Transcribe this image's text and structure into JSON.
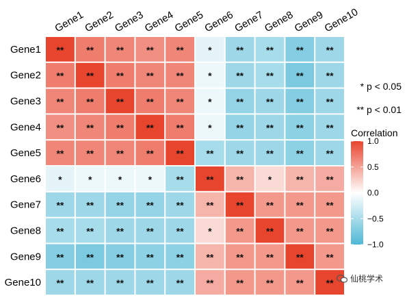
{
  "chart_data": {
    "type": "heatmap",
    "title": "",
    "genes": [
      "Gene1",
      "Gene2",
      "Gene3",
      "Gene4",
      "Gene5",
      "Gene6",
      "Gene7",
      "Gene8",
      "Gene9",
      "Gene10"
    ],
    "matrix": [
      [
        1.0,
        0.7,
        0.65,
        0.6,
        0.65,
        -0.15,
        -0.55,
        -0.5,
        -0.7,
        -0.55
      ],
      [
        0.7,
        1.0,
        0.7,
        0.65,
        0.65,
        -0.1,
        -0.55,
        -0.5,
        -0.75,
        -0.55
      ],
      [
        0.65,
        0.7,
        1.0,
        0.7,
        0.65,
        -0.1,
        -0.6,
        -0.55,
        -0.7,
        -0.55
      ],
      [
        0.6,
        0.65,
        0.7,
        1.0,
        0.7,
        -0.1,
        -0.6,
        -0.55,
        -0.65,
        -0.55
      ],
      [
        0.65,
        0.65,
        0.65,
        0.7,
        1.0,
        -0.5,
        -0.55,
        -0.55,
        -0.65,
        -0.55
      ],
      [
        -0.15,
        -0.1,
        -0.1,
        -0.1,
        -0.5,
        1.0,
        0.4,
        0.2,
        0.4,
        0.45
      ],
      [
        -0.55,
        -0.55,
        -0.6,
        -0.6,
        -0.55,
        0.4,
        1.0,
        0.55,
        0.55,
        0.55
      ],
      [
        -0.5,
        -0.5,
        -0.55,
        -0.55,
        -0.55,
        0.2,
        0.55,
        1.0,
        0.55,
        0.55
      ],
      [
        -0.7,
        -0.75,
        -0.7,
        -0.65,
        -0.65,
        0.4,
        0.55,
        0.55,
        1.0,
        0.55
      ],
      [
        -0.55,
        -0.55,
        -0.55,
        -0.55,
        -0.55,
        0.45,
        0.55,
        0.55,
        0.55,
        1.0
      ]
    ],
    "significance": [
      [
        "**",
        "**",
        "**",
        "**",
        "**",
        "*",
        "**",
        "**",
        "**",
        "**"
      ],
      [
        "**",
        "**",
        "**",
        "**",
        "**",
        "*",
        "**",
        "**",
        "**",
        "**"
      ],
      [
        "**",
        "**",
        "**",
        "**",
        "**",
        "*",
        "**",
        "**",
        "**",
        "**"
      ],
      [
        "**",
        "**",
        "**",
        "**",
        "**",
        "*",
        "**",
        "**",
        "**",
        "**"
      ],
      [
        "**",
        "**",
        "**",
        "**",
        "**",
        "**",
        "**",
        "**",
        "**",
        "**"
      ],
      [
        "*",
        "*",
        "*",
        "*",
        "**",
        "**",
        "**",
        "*",
        "**",
        "**"
      ],
      [
        "**",
        "**",
        "**",
        "**",
        "**",
        "**",
        "**",
        "**",
        "**",
        "**"
      ],
      [
        "**",
        "**",
        "**",
        "**",
        "**",
        "*",
        "**",
        "**",
        "**",
        "**"
      ],
      [
        "**",
        "**",
        "**",
        "**",
        "**",
        "**",
        "**",
        "**",
        "**",
        "**"
      ],
      [
        "**",
        "**",
        "**",
        "**",
        "**",
        "**",
        "**",
        "**",
        "**",
        "**"
      ]
    ],
    "legend": {
      "title": "Correlation",
      "ticks": [
        1.0,
        0.5,
        0.0,
        -0.5,
        -1.0
      ],
      "tick_labels": [
        "1.0",
        "0.5",
        "0.0",
        "−0.5",
        "−1.0"
      ],
      "range": [
        -1,
        1
      ],
      "placement": "right"
    },
    "colors": {
      "high": "#e8452e",
      "mid": "#ffffff",
      "low": "#4fb8d6"
    },
    "significance_legend": [
      "* p < 0.05",
      "** p < 0.01"
    ]
  },
  "watermark": {
    "text": "仙桃学术",
    "icon": "wechat-icon"
  }
}
